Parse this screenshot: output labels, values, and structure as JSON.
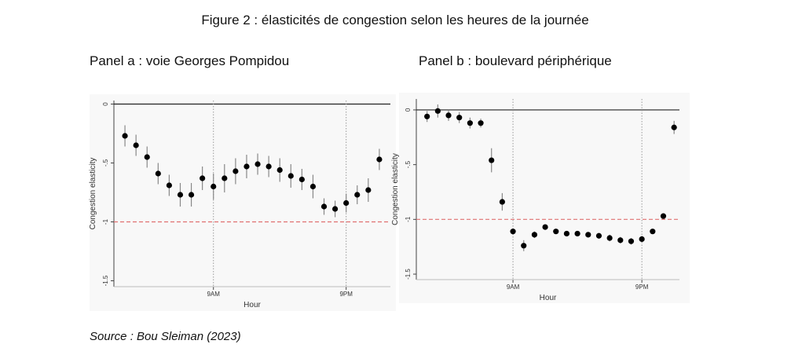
{
  "figure_title": "Figure 2 : élasticités de congestion selon les heures de la journée",
  "source": "Source : Bou Sleiman (2023)",
  "chart_data": [
    {
      "type": "scatter",
      "title": "Panel a : voie Georges Pompidou",
      "xlabel": "Hour",
      "ylabel": "Congestion elasticity",
      "x": [
        1,
        2,
        3,
        4,
        5,
        6,
        7,
        8,
        9,
        10,
        11,
        12,
        13,
        14,
        15,
        16,
        17,
        18,
        19,
        20,
        21,
        22,
        23,
        24
      ],
      "values": [
        -0.27,
        -0.35,
        -0.45,
        -0.59,
        -0.69,
        -0.77,
        -0.77,
        -0.63,
        -0.7,
        -0.63,
        -0.57,
        -0.53,
        -0.51,
        -0.53,
        -0.56,
        -0.61,
        -0.64,
        -0.7,
        -0.87,
        -0.89,
        -0.84,
        -0.77,
        -0.73,
        -0.47
      ],
      "errors": [
        0.09,
        0.09,
        0.09,
        0.09,
        0.09,
        0.1,
        0.1,
        0.1,
        0.11,
        0.12,
        0.11,
        0.1,
        0.09,
        0.09,
        0.1,
        0.1,
        0.09,
        0.1,
        0.07,
        0.07,
        0.08,
        0.08,
        0.1,
        0.09
      ],
      "color": "#000000",
      "xlim": [
        0,
        25
      ],
      "xticks": [
        {
          "value": 9,
          "label": "9AM"
        },
        {
          "value": 21,
          "label": "9PM"
        }
      ],
      "ylim": [
        -1.55,
        0.03
      ],
      "yticks": [
        0,
        {
          "value": -0.5,
          "label": "-.5"
        },
        -1,
        -1.5
      ],
      "reference_line": {
        "value": -1,
        "color": "#e07070"
      }
    },
    {
      "type": "scatter",
      "title": "Panel b : boulevard périphérique",
      "xlabel": "Hour",
      "ylabel": "Congestion elasticity",
      "x": [
        1,
        2,
        3,
        4,
        5,
        6,
        7,
        8,
        9,
        10,
        11,
        12,
        13,
        14,
        15,
        16,
        17,
        18,
        19,
        20,
        21,
        22,
        23,
        24
      ],
      "values": [
        -0.06,
        -0.01,
        -0.05,
        -0.07,
        -0.12,
        -0.12,
        -0.46,
        -0.84,
        -1.11,
        -1.24,
        -1.14,
        -1.07,
        -1.11,
        -1.13,
        -1.13,
        -1.14,
        -1.15,
        -1.17,
        -1.19,
        -1.2,
        -1.18,
        -1.11,
        -0.97,
        -0.16
      ],
      "errors": [
        0.05,
        0.06,
        0.05,
        0.05,
        0.05,
        0.04,
        0.11,
        0.08,
        0.03,
        0.05,
        0.03,
        0.02,
        0.02,
        0.02,
        0.02,
        0.02,
        0.02,
        0.03,
        0.03,
        0.03,
        0.03,
        0.02,
        0.02,
        0.06
      ],
      "color": "#000000",
      "xlim": [
        0,
        24.5
      ],
      "xticks": [
        {
          "value": 9,
          "label": "9AM"
        },
        {
          "value": 21,
          "label": "9PM"
        }
      ],
      "ylim": [
        -1.55,
        0.1
      ],
      "yticks": [
        0,
        {
          "value": -0.5,
          "label": "-.5"
        },
        -1,
        -1.5
      ],
      "reference_line": {
        "value": -1,
        "color": "#e07070"
      }
    }
  ]
}
